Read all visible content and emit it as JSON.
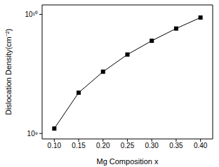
{
  "chart_data": {
    "type": "line",
    "x_label": "Mg Composition x",
    "y_label": "Dislocation Density(cm⁻²)",
    "x": [
      0.1,
      0.15,
      0.2,
      0.25,
      0.3,
      0.35,
      0.4
    ],
    "values": [
      1100000000,
      2200000000,
      3300000000,
      4600000000,
      6000000000,
      7600000000,
      9400000000
    ],
    "color": "#000000",
    "marker": "square",
    "line_style": "solid",
    "log": "y",
    "grid": false,
    "xlim": [
      0.075,
      0.425
    ],
    "xticks": [
      {
        "value": 0.1,
        "label": "0.10"
      },
      {
        "value": 0.15,
        "label": "0.15"
      },
      {
        "value": 0.2,
        "label": "0.20"
      },
      {
        "value": 0.25,
        "label": "0.25"
      },
      {
        "value": 0.3,
        "label": "0.30"
      },
      {
        "value": 0.35,
        "label": "0.35"
      },
      {
        "value": 0.4,
        "label": "0.40"
      }
    ],
    "ylim": [
      900000000,
      12000000000
    ],
    "yticks": [
      {
        "value": 1000000000,
        "label": "10⁹"
      },
      {
        "value": 10000000000,
        "label": "10¹⁰"
      }
    ]
  }
}
